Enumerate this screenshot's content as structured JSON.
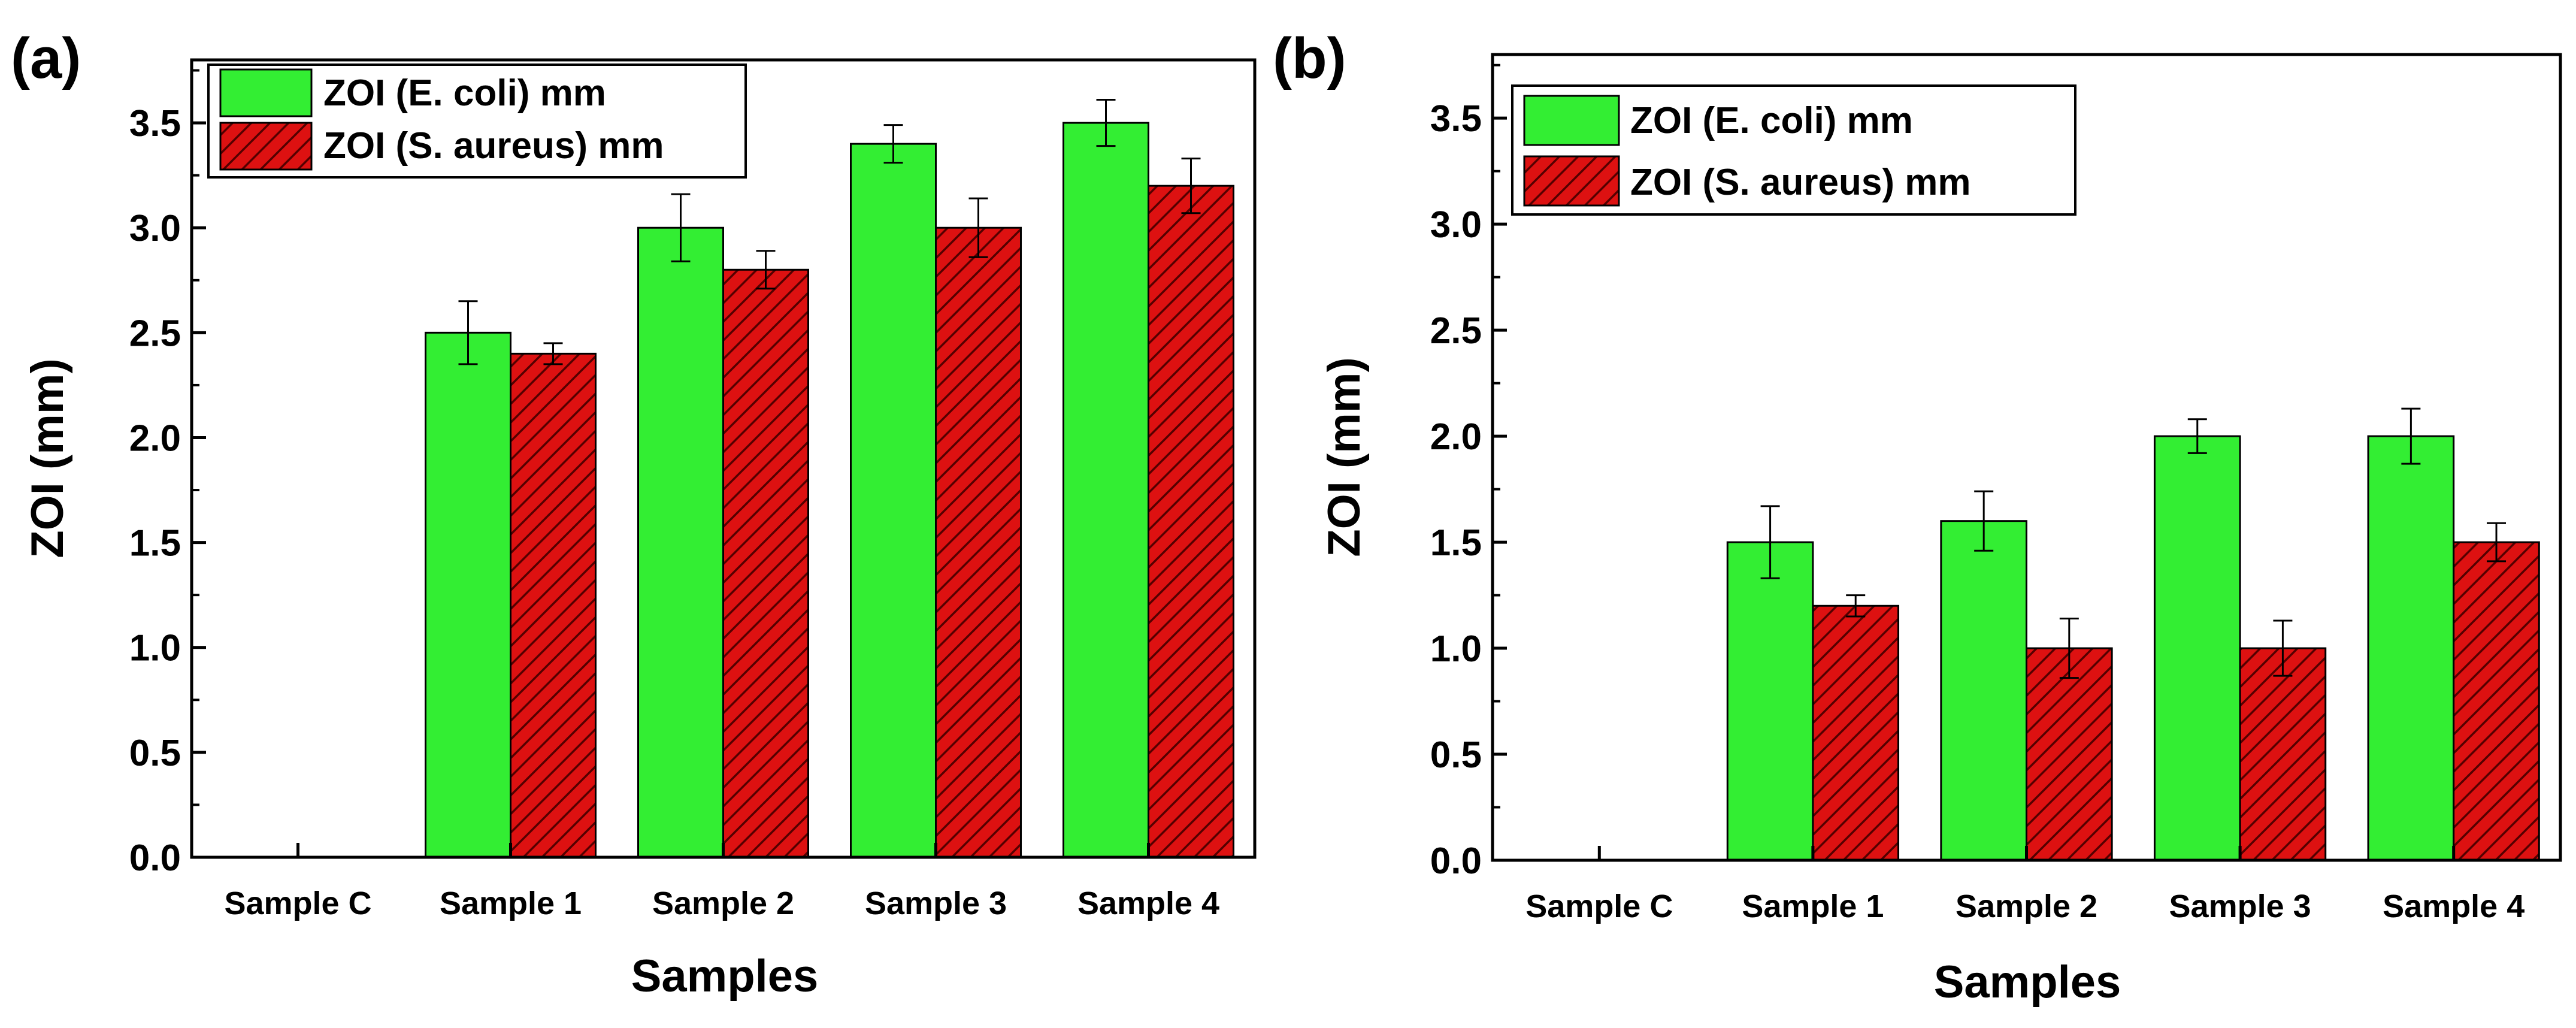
{
  "figure": {
    "colors": {
      "ecoli": "#33ee33",
      "saureus": "#dd1111",
      "hatch": "#550000"
    }
  },
  "chart_data": [
    {
      "panel": "(a)",
      "type": "bar",
      "xlabel": "Samples",
      "ylabel": "ZOI (mm)",
      "ylim": [
        0,
        3.8
      ],
      "yticks": [
        "0.0",
        "0.5",
        "1.0",
        "1.5",
        "2.0",
        "2.5",
        "3.0",
        "3.5"
      ],
      "categories": [
        "Sample C",
        "Sample 1",
        "Sample 2",
        "Sample 3",
        "Sample 4"
      ],
      "legend_position": "top-left",
      "series": [
        {
          "name": "ZOI (E. coli) mm",
          "values": [
            0,
            2.5,
            3.0,
            3.4,
            3.5
          ],
          "errors": [
            0,
            0.15,
            0.16,
            0.09,
            0.11
          ]
        },
        {
          "name": "ZOI (S. aureus) mm",
          "values": [
            0,
            2.4,
            2.8,
            3.0,
            3.2
          ],
          "errors": [
            0,
            0.05,
            0.09,
            0.14,
            0.13
          ]
        }
      ]
    },
    {
      "panel": "(b)",
      "type": "bar",
      "xlabel": "Samples",
      "ylabel": "ZOI (mm)",
      "ylim": [
        0,
        3.8
      ],
      "yticks": [
        "0.0",
        "0.5",
        "1.0",
        "1.5",
        "2.0",
        "2.5",
        "3.0",
        "3.5"
      ],
      "categories": [
        "Sample C",
        "Sample 1",
        "Sample 2",
        "Sample 3",
        "Sample 4"
      ],
      "legend_position": "top-left",
      "series": [
        {
          "name": "ZOI (E. coli) mm",
          "values": [
            0,
            1.5,
            1.6,
            2.0,
            2.0
          ],
          "errors": [
            0,
            0.17,
            0.14,
            0.08,
            0.13
          ]
        },
        {
          "name": "ZOI (S. aureus) mm",
          "values": [
            0,
            1.2,
            1.0,
            1.0,
            1.5
          ],
          "errors": [
            0,
            0.05,
            0.14,
            0.13,
            0.09
          ]
        }
      ]
    }
  ]
}
